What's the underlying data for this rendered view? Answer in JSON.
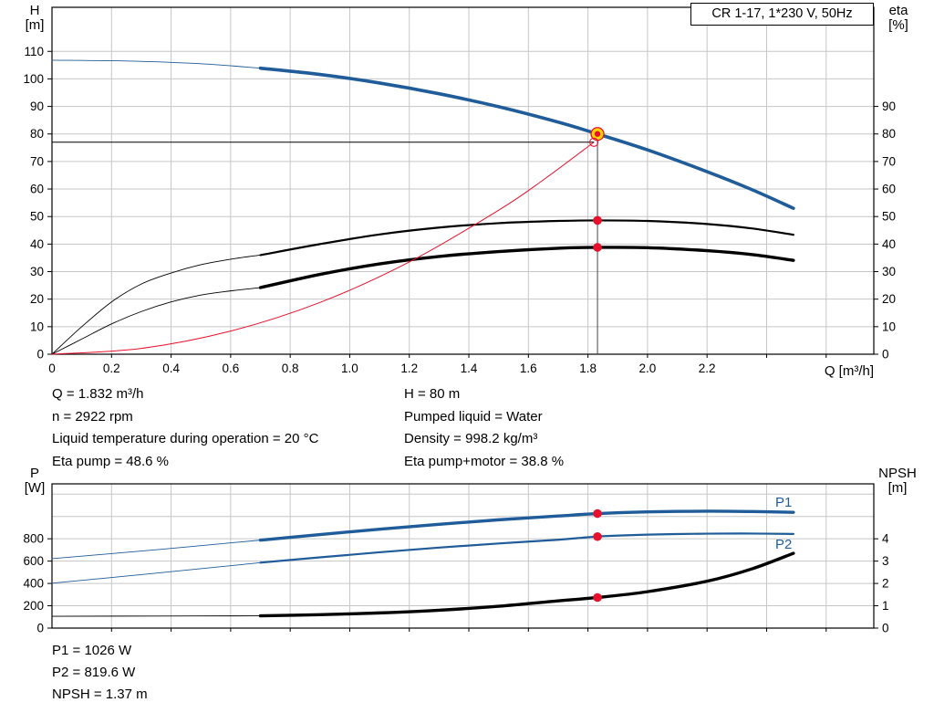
{
  "ui": {
    "title_box": "CR 1-17, 1*230 V, 50Hz",
    "h_axis": {
      "name": "H",
      "unit": "[m]"
    },
    "eta_axis": {
      "name": "eta",
      "unit": "[%]"
    },
    "q_axis_label": "Q [m³/h]",
    "p_axis": {
      "name": "P",
      "unit": "[W]"
    },
    "npsh_axis": {
      "name": "NPSH",
      "unit": "[m]"
    },
    "p1_label": "P1",
    "p2_label": "P2",
    "info_left": [
      "Q = 1.832 m³/h",
      "n = 2922 rpm",
      "Liquid temperature during operation = 20 °C",
      "Eta pump = 48.6 %"
    ],
    "info_right": [
      "H = 80 m",
      "Pumped liquid = Water",
      "Density = 998.2 kg/m³",
      "Eta pump+motor = 38.8 %"
    ],
    "result_lines": [
      "P1 = 1026 W",
      "P2 = 819.6 W",
      "NPSH = 1.37 m"
    ]
  },
  "colors": {
    "blue": "#1f5c99",
    "black": "#000000",
    "red": "#e8112d",
    "dot_red": "#e8112d",
    "marker_yellow": "#ffd500",
    "grid": "#c6c6c6",
    "ref_gray": "#444444",
    "frame": "#000000"
  },
  "chart_data": [
    {
      "type": "line",
      "title": "CR 1-17, 1*230 V, 50Hz",
      "xlabel": "Q [m³/h]",
      "ylabel_left": "H [m]",
      "ylabel_right": "eta [%]",
      "xlim": [
        0,
        2.76
      ],
      "ylim_left": [
        0,
        126
      ],
      "ylim_right": [
        0,
        126
      ],
      "x_tick_step": 0.2,
      "x_grid_max": 2.6,
      "x_ticks": [
        [
          0,
          "0"
        ],
        [
          0.2,
          "0.2"
        ],
        [
          0.4,
          "0.4"
        ],
        [
          0.6,
          "0.6"
        ],
        [
          0.8,
          "0.8"
        ],
        [
          1.0,
          "1.0"
        ],
        [
          1.2,
          "1.2"
        ],
        [
          1.4,
          "1.4"
        ],
        [
          1.6,
          "1.6"
        ],
        [
          1.8,
          "1.8"
        ],
        [
          2.0,
          "2.0"
        ],
        [
          2.2,
          "2.2"
        ]
      ],
      "left_ticks": [
        0,
        10,
        20,
        30,
        40,
        50,
        60,
        70,
        80,
        90,
        100,
        110
      ],
      "left_grid": [
        10,
        20,
        30,
        40,
        50,
        60,
        70,
        80,
        90,
        100,
        110
      ],
      "right_ticks": [
        0,
        10,
        20,
        30,
        40,
        50,
        60,
        70,
        80,
        90
      ],
      "series": [
        {
          "name": "H-curve-ext",
          "color": "blue",
          "width": 0.9,
          "axis": "left",
          "points": [
            [
              0,
              106.8
            ],
            [
              0.25,
              106.5
            ],
            [
              0.5,
              105.5
            ],
            [
              0.7,
              103.9
            ]
          ]
        },
        {
          "name": "H-curve",
          "color": "blue",
          "width": 3.6,
          "axis": "left",
          "points": [
            [
              0.7,
              103.9
            ],
            [
              0.9,
              101.6
            ],
            [
              1.1,
              98.5
            ],
            [
              1.3,
              94.6
            ],
            [
              1.5,
              89.9
            ],
            [
              1.7,
              84.3
            ],
            [
              1.832,
              80
            ],
            [
              2.0,
              74.2
            ],
            [
              2.2,
              66.3
            ],
            [
              2.35,
              59.8
            ],
            [
              2.49,
              53
            ]
          ]
        },
        {
          "name": "eta-pump-ext",
          "color": "black",
          "width": 0.9,
          "axis": "right",
          "points": [
            [
              0,
              0
            ],
            [
              0.1,
              10
            ],
            [
              0.2,
              19
            ],
            [
              0.3,
              25.5
            ],
            [
              0.4,
              29.5
            ],
            [
              0.5,
              32.5
            ],
            [
              0.6,
              34.5
            ],
            [
              0.7,
              36
            ]
          ]
        },
        {
          "name": "eta-pump",
          "color": "black",
          "width": 2.2,
          "axis": "right",
          "points": [
            [
              0.7,
              36
            ],
            [
              0.9,
              40
            ],
            [
              1.1,
              43.5
            ],
            [
              1.3,
              46
            ],
            [
              1.5,
              47.6
            ],
            [
              1.7,
              48.4
            ],
            [
              1.832,
              48.6
            ],
            [
              2.0,
              48.4
            ],
            [
              2.2,
              47.3
            ],
            [
              2.35,
              45.7
            ],
            [
              2.49,
              43.4
            ]
          ]
        },
        {
          "name": "eta-pump-motor-ext",
          "color": "black",
          "width": 0.9,
          "axis": "right",
          "points": [
            [
              0,
              0
            ],
            [
              0.1,
              5.5
            ],
            [
              0.2,
              11
            ],
            [
              0.3,
              15.5
            ],
            [
              0.4,
              19
            ],
            [
              0.5,
              21.5
            ],
            [
              0.6,
              23
            ],
            [
              0.7,
              24.2
            ]
          ]
        },
        {
          "name": "eta-pump-motor",
          "color": "black",
          "width": 3.4,
          "axis": "right",
          "points": [
            [
              0.7,
              24.2
            ],
            [
              0.9,
              29
            ],
            [
              1.1,
              32.8
            ],
            [
              1.3,
              35.5
            ],
            [
              1.5,
              37.3
            ],
            [
              1.7,
              38.5
            ],
            [
              1.832,
              38.8
            ],
            [
              2.0,
              38.7
            ],
            [
              2.2,
              37.6
            ],
            [
              2.35,
              36.2
            ],
            [
              2.49,
              34.1
            ]
          ]
        },
        {
          "name": "system-curve",
          "color": "red",
          "width": 1,
          "axis": "left",
          "points": [
            [
              0,
              0
            ],
            [
              0.3,
              2.1
            ],
            [
              0.6,
              8.4
            ],
            [
              0.9,
              18.8
            ],
            [
              1.2,
              33.5
            ],
            [
              1.5,
              52.3
            ],
            [
              1.65,
              63.3
            ],
            [
              1.82,
              77
            ]
          ]
        }
      ],
      "reference_lines": [
        {
          "orient": "h",
          "value": 77,
          "q_from": 0,
          "q_to": 1.82,
          "axis": "left",
          "color": "black",
          "width": 1
        },
        {
          "orient": "v",
          "q": 1.832,
          "v_from": 0,
          "v_to": 80,
          "axis": "left",
          "color": "ref_gray",
          "width": 1
        }
      ],
      "markers": [
        {
          "q": 1.832,
          "v": 80,
          "axis": "left",
          "style": "duty",
          "label": "duty point Q=1.832 H=80"
        },
        {
          "q": 1.82,
          "v": 77,
          "axis": "left",
          "style": "open"
        },
        {
          "q": 1.832,
          "v": 48.6,
          "axis": "right",
          "style": "dot"
        },
        {
          "q": 1.832,
          "v": 38.8,
          "axis": "right",
          "style": "dot"
        }
      ]
    },
    {
      "type": "line",
      "title": "",
      "xlabel": "",
      "ylabel_left": "P [W]",
      "ylabel_right": "NPSH [m]",
      "xlim": [
        0,
        2.76
      ],
      "ylim_left": [
        0,
        1292
      ],
      "ylim_right": [
        0,
        6.46
      ],
      "x_tick_step": 0.2,
      "x_grid_max": 2.6,
      "left_ticks": [
        0,
        200,
        400,
        600,
        800
      ],
      "left_grid": [
        200,
        400,
        600,
        800,
        1000,
        1200
      ],
      "right_ticks": [
        0,
        1,
        2,
        3,
        4
      ],
      "series": [
        {
          "name": "P1-ext",
          "color": "blue",
          "width": 0.9,
          "axis": "left",
          "points": [
            [
              0,
              622
            ],
            [
              0.35,
              702
            ],
            [
              0.7,
              788
            ]
          ]
        },
        {
          "name": "P1",
          "color": "blue",
          "width": 3.4,
          "axis": "left",
          "points": [
            [
              0.7,
              788
            ],
            [
              0.9,
              838
            ],
            [
              1.1,
              886
            ],
            [
              1.3,
              930
            ],
            [
              1.5,
              970
            ],
            [
              1.7,
              1004
            ],
            [
              1.832,
              1026
            ],
            [
              2.0,
              1041
            ],
            [
              2.2,
              1047
            ],
            [
              2.35,
              1044
            ],
            [
              2.49,
              1037
            ]
          ]
        },
        {
          "name": "P2-ext",
          "color": "blue",
          "width": 0.9,
          "axis": "left",
          "points": [
            [
              0,
              402
            ],
            [
              0.35,
              492
            ],
            [
              0.7,
              586
            ]
          ]
        },
        {
          "name": "P2",
          "color": "blue",
          "width": 2.2,
          "axis": "left",
          "points": [
            [
              0.7,
              586
            ],
            [
              0.9,
              634
            ],
            [
              1.1,
              679
            ],
            [
              1.3,
              721
            ],
            [
              1.5,
              758
            ],
            [
              1.7,
              791
            ],
            [
              1.832,
              820
            ],
            [
              2.0,
              837
            ],
            [
              2.2,
              846
            ],
            [
              2.35,
              847
            ],
            [
              2.49,
              843
            ]
          ]
        },
        {
          "name": "NPSH-ext",
          "color": "black",
          "width": 0.9,
          "axis": "right",
          "points": [
            [
              0,
              0.53
            ],
            [
              0.35,
              0.54
            ],
            [
              0.7,
              0.55
            ]
          ]
        },
        {
          "name": "NPSH",
          "color": "black",
          "width": 3.4,
          "axis": "right",
          "points": [
            [
              0.7,
              0.55
            ],
            [
              0.9,
              0.6
            ],
            [
              1.1,
              0.68
            ],
            [
              1.3,
              0.8
            ],
            [
              1.5,
              0.98
            ],
            [
              1.7,
              1.22
            ],
            [
              1.832,
              1.37
            ],
            [
              2.0,
              1.63
            ],
            [
              2.2,
              2.1
            ],
            [
              2.35,
              2.65
            ],
            [
              2.49,
              3.35
            ]
          ]
        }
      ],
      "markers": [
        {
          "q": 1.832,
          "v": 1026,
          "axis": "left",
          "style": "dot"
        },
        {
          "q": 1.832,
          "v": 819.6,
          "axis": "left",
          "style": "dot"
        },
        {
          "q": 1.832,
          "v": 1.37,
          "axis": "right",
          "style": "dot"
        }
      ]
    }
  ]
}
